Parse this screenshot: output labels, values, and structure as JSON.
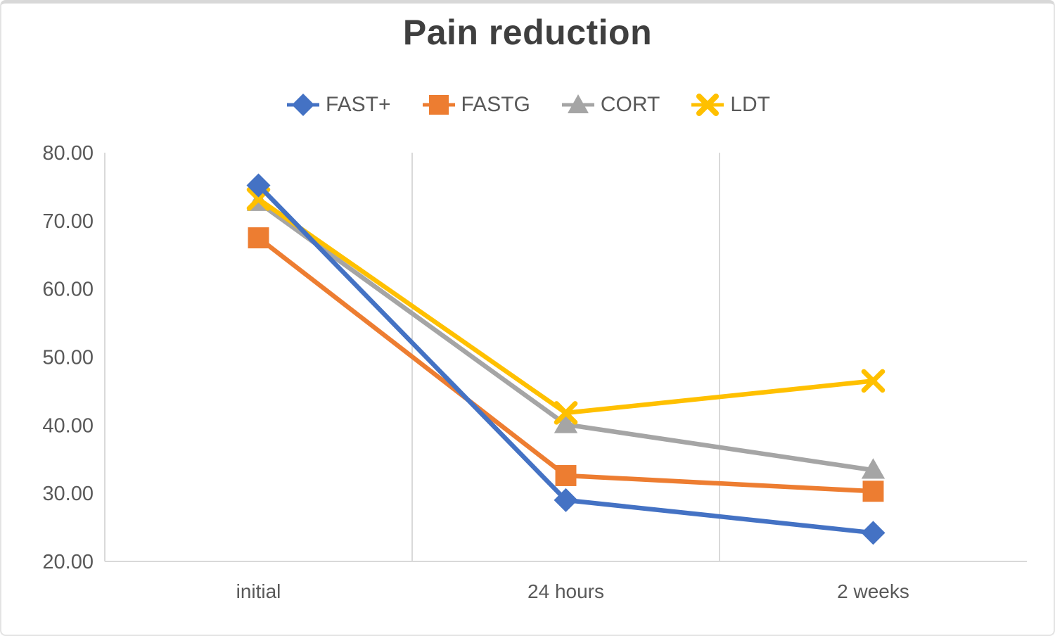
{
  "chart_data": {
    "type": "line",
    "title": "Pain reduction",
    "categories": [
      "initial",
      "24 hours",
      "2 weeks"
    ],
    "series": [
      {
        "name": "FAST+",
        "marker": "diamond",
        "color": "#4472C4",
        "values": [
          75.2,
          29.0,
          24.2
        ]
      },
      {
        "name": "FASTG",
        "marker": "square",
        "color": "#ED7D31",
        "values": [
          67.5,
          32.6,
          30.3
        ]
      },
      {
        "name": "CORT",
        "marker": "triangle",
        "color": "#A5A5A5",
        "values": [
          72.7,
          40.1,
          33.4
        ]
      },
      {
        "name": "LDT",
        "marker": "x",
        "color": "#FFC000",
        "values": [
          73.2,
          41.8,
          46.5
        ]
      }
    ],
    "xlabel": "",
    "ylabel": "",
    "ylim": [
      20,
      80
    ],
    "ytick_step": 10,
    "ytick_labels": [
      "20.00",
      "30.00",
      "40.00",
      "50.00",
      "60.00",
      "70.00",
      "80.00"
    ],
    "grid": "vertical-between-categories-only",
    "legend_position": "top-center",
    "axis_color": "#d9d9d9",
    "gridline_color": "#d9d9d9",
    "label_color": "#595959",
    "title_color": "#3f3f3f"
  }
}
